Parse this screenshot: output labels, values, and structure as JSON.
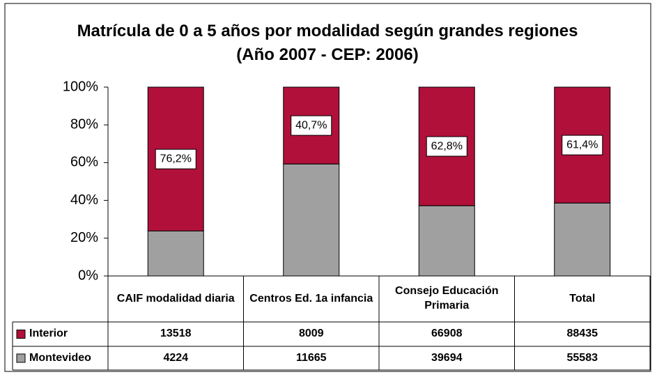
{
  "chart_data": {
    "type": "stacked_percent_bar",
    "title": "Matrícula de 0 a 5 años por modalidad según grandes regiones (Año 2007 - CEP: 2006)",
    "categories": [
      "CAIF modalidad diaria",
      "Centros Ed. 1a infancia",
      "Consejo Educación Primaria",
      "Total"
    ],
    "series": [
      {
        "name": "Montevideo",
        "color": "#a0a0a0",
        "values": [
          23.8,
          59.3,
          37.2,
          38.6
        ],
        "counts": [
          4224,
          11665,
          39694,
          55583
        ]
      },
      {
        "name": "Interior",
        "color": "#b0103a",
        "values": [
          76.2,
          40.7,
          62.8,
          61.4
        ],
        "value_labels": [
          "76,2%",
          "40,7%",
          "62,8%",
          "61,4%"
        ],
        "counts": [
          13518,
          8009,
          66908,
          88435
        ]
      }
    ],
    "ylim": [
      0,
      100
    ],
    "yticks": [
      {
        "value": 0,
        "label": "0%"
      },
      {
        "value": 20,
        "label": "20%"
      },
      {
        "value": 40,
        "label": "40%"
      },
      {
        "value": 60,
        "label": "60%"
      },
      {
        "value": 80,
        "label": "80%"
      },
      {
        "value": 100,
        "label": "100%"
      }
    ]
  }
}
